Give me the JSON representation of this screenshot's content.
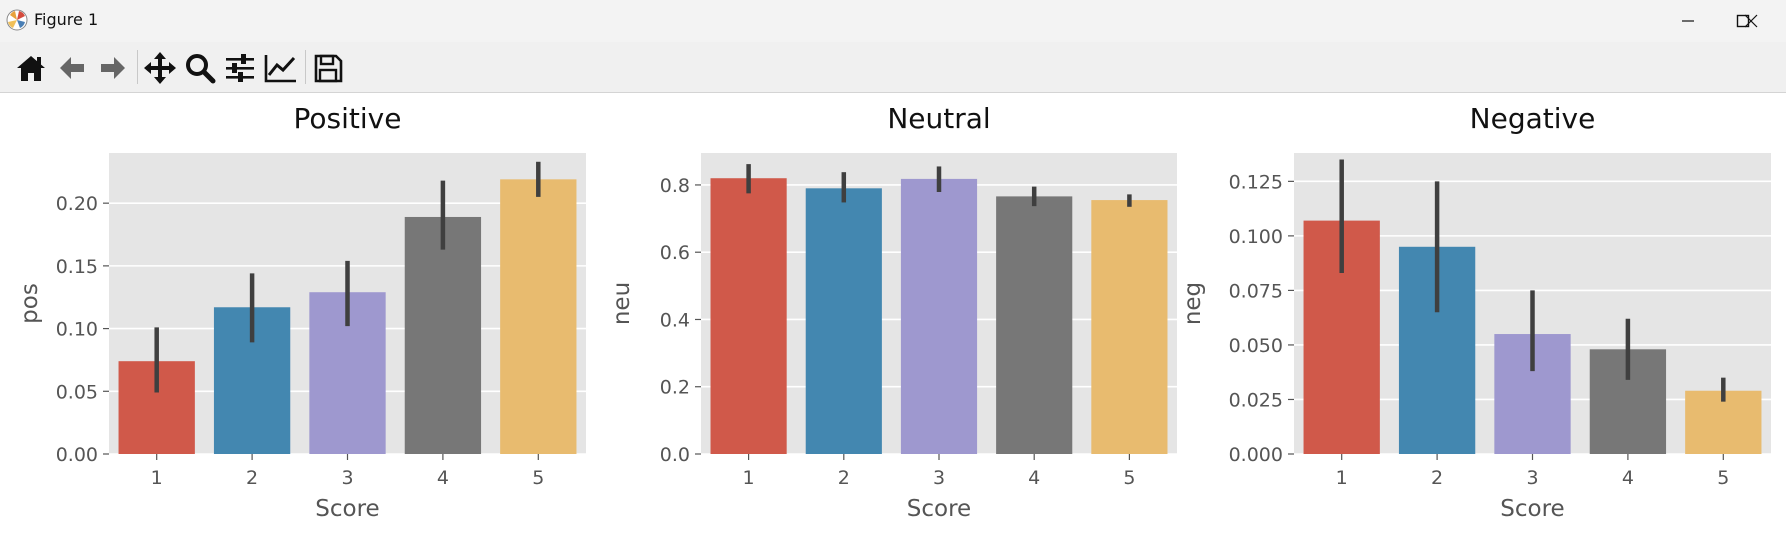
{
  "window": {
    "title": "Figure 1",
    "minimize_icon": "minimize-icon",
    "maximize_icon": "maximize-icon",
    "close_icon": "close-icon"
  },
  "toolbar": {
    "buttons": [
      {
        "name": "home-button",
        "icon": "home-icon"
      },
      {
        "name": "back-button",
        "icon": "arrow-left-icon"
      },
      {
        "name": "forward-button",
        "icon": "arrow-right-icon"
      },
      {
        "name": "pan-button",
        "icon": "move-icon"
      },
      {
        "name": "zoom-button",
        "icon": "magnifier-icon"
      },
      {
        "name": "configure-subplots-button",
        "icon": "sliders-icon"
      },
      {
        "name": "edit-axes-button",
        "icon": "chart-line-icon"
      },
      {
        "name": "save-button",
        "icon": "floppy-disk-icon"
      }
    ]
  },
  "colors": {
    "bars": [
      "#d0594a",
      "#4387b0",
      "#9e98cf",
      "#777777",
      "#e8bb6f"
    ],
    "plot_bg": "#e5e5e5",
    "grid": "#ffffff",
    "errbar": "#3f3f3f",
    "text": "#555555",
    "title": "#111111"
  },
  "chart_data": [
    {
      "type": "bar",
      "title": "Positive",
      "xlabel": "Score",
      "ylabel": "pos",
      "categories": [
        "1",
        "2",
        "3",
        "4",
        "5"
      ],
      "values": [
        0.074,
        0.117,
        0.129,
        0.189,
        0.219
      ],
      "error_low": [
        0.049,
        0.089,
        0.102,
        0.163,
        0.205
      ],
      "error_high": [
        0.101,
        0.144,
        0.154,
        0.218,
        0.233
      ],
      "ylim": [
        0,
        0.24
      ],
      "yticks": [
        0.0,
        0.05,
        0.1,
        0.15,
        0.2
      ],
      "yticklabels": [
        "0.00",
        "0.05",
        "0.10",
        "0.15",
        "0.20"
      ],
      "grid": true
    },
    {
      "type": "bar",
      "title": "Neutral",
      "xlabel": "Score",
      "ylabel": "neu",
      "categories": [
        "1",
        "2",
        "3",
        "4",
        "5"
      ],
      "values": [
        0.82,
        0.79,
        0.818,
        0.766,
        0.755
      ],
      "error_low": [
        0.775,
        0.748,
        0.779,
        0.737,
        0.735
      ],
      "error_high": [
        0.862,
        0.838,
        0.855,
        0.795,
        0.772
      ],
      "ylim": [
        0,
        0.895
      ],
      "yticks": [
        0.0,
        0.2,
        0.4,
        0.6,
        0.8
      ],
      "yticklabels": [
        "0.0",
        "0.2",
        "0.4",
        "0.6",
        "0.8"
      ],
      "grid": true
    },
    {
      "type": "bar",
      "title": "Negative",
      "xlabel": "Score",
      "ylabel": "neg",
      "categories": [
        "1",
        "2",
        "3",
        "4",
        "5"
      ],
      "values": [
        0.107,
        0.095,
        0.055,
        0.048,
        0.029
      ],
      "error_low": [
        0.083,
        0.065,
        0.038,
        0.034,
        0.024
      ],
      "error_high": [
        0.135,
        0.125,
        0.075,
        0.062,
        0.035
      ],
      "ylim": [
        0,
        0.138
      ],
      "yticks": [
        0.0,
        0.025,
        0.05,
        0.075,
        0.1,
        0.125
      ],
      "yticklabels": [
        "0.000",
        "0.025",
        "0.050",
        "0.075",
        "0.100",
        "0.125"
      ],
      "grid": true
    }
  ]
}
